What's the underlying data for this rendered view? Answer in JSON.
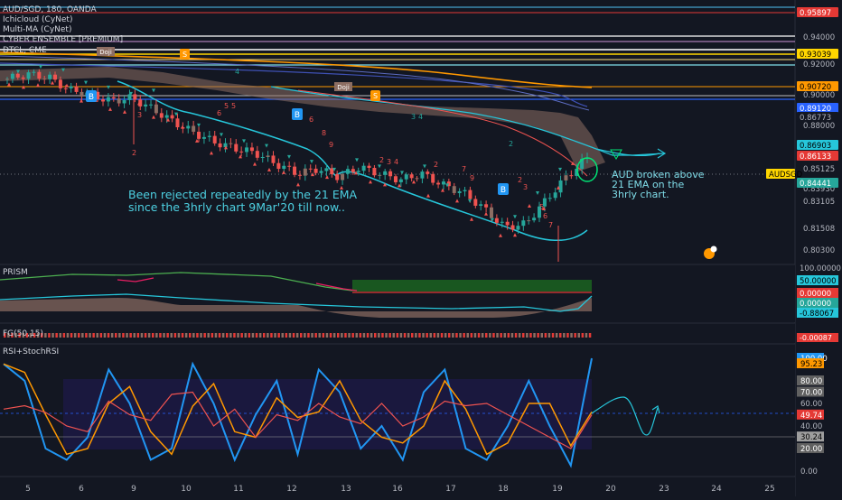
{
  "header": {
    "symbol_line": "AUD/SGD, 180, OANDA",
    "indicators": [
      "Ichicloud (CyNet)",
      "Multi-MA (CyNet)",
      "CYBER ENSEMBLE [PREMIUM]",
      "DTCL, CME"
    ]
  },
  "annotations": {
    "rejected_line1": "Been rejected repeatedly by the 21 EMA",
    "rejected_line2": "since the 3hrly chart 9Mar'20 till now..",
    "broken_line1": "AUD broken above",
    "broken_line2": "21 EMA on the",
    "broken_line3": "3hrly chart.",
    "doji1": "Doji",
    "doji2": "Doji",
    "b_markers": [
      "B",
      "B",
      "B",
      "B"
    ],
    "s_markers": [
      "S",
      "S"
    ],
    "counts": [
      "2",
      "3",
      "4",
      "5",
      "6",
      "7",
      "8",
      "9"
    ]
  },
  "price_axis": {
    "ticks": [
      "0.94000",
      "0.92000",
      "0.90000",
      "0.88000",
      "0.85125",
      "0.83930",
      "0.83105",
      "0.81508",
      "0.80300"
    ],
    "tags": [
      {
        "text": "0.95897",
        "color": "#e53935",
        "fg": "#ffffff"
      },
      {
        "text": "0.93039",
        "color": "#ffd600",
        "fg": "#000000"
      },
      {
        "text": "0.90720",
        "color": "#ff9800",
        "fg": "#000000"
      },
      {
        "text": "0.89120",
        "color": "#2962ff",
        "fg": "#ffffff"
      },
      {
        "text": "0.86773",
        "color": "#131722",
        "fg": "#b2b5be"
      },
      {
        "text": "0.86903",
        "color": "#26c6da",
        "fg": "#000000"
      },
      {
        "text": "0.86133",
        "color": "#e53935",
        "fg": "#ffffff"
      },
      {
        "text": "AUDSGD",
        "color": "#ffd600",
        "fg": "#000000"
      },
      {
        "text": "0.84441",
        "color": "#26a69a",
        "fg": "#ffffff"
      }
    ]
  },
  "prism": {
    "label": "PRISM",
    "ticks": [
      "100.00000",
      "50.00000",
      "0.00000",
      "0.00000",
      "-0.88067"
    ]
  },
  "fg": {
    "label": "FG(50,15)",
    "value": "-0.00087"
  },
  "rsi": {
    "label": "RSI+StochRSI",
    "ticks": [
      "100.00",
      "95.23",
      "80.00",
      "70.00",
      "60.00",
      "49.74",
      "40.00",
      "30.24",
      "20.00",
      "0.00"
    ]
  },
  "time_axis": {
    "labels": [
      "5",
      "6",
      "9",
      "10",
      "11",
      "12",
      "13",
      "16",
      "17",
      "18",
      "19",
      "20",
      "23",
      "24",
      "25"
    ]
  },
  "colors": {
    "bg": "#131722",
    "up": "#26a69a",
    "down": "#ef5350",
    "ema": "#26c6da",
    "cloud": "#a1887f"
  },
  "chart_data": {
    "type": "candlestick",
    "title": "AUD/SGD, 180, OANDA",
    "ylim": [
      0.795,
      0.962
    ],
    "x_labels": [
      "5",
      "6",
      "9",
      "10",
      "11",
      "12",
      "13",
      "16",
      "17",
      "18",
      "19",
      "20",
      "23",
      "24",
      "25"
    ],
    "close_path": [
      0.912,
      0.915,
      0.913,
      0.905,
      0.902,
      0.898,
      0.9,
      0.893,
      0.885,
      0.878,
      0.872,
      0.868,
      0.865,
      0.858,
      0.852,
      0.855,
      0.85,
      0.856,
      0.852,
      0.848,
      0.852,
      0.845,
      0.84,
      0.83,
      0.818,
      0.82,
      0.835,
      0.85,
      0.862
    ],
    "rsi": [
      55,
      58,
      52,
      40,
      35,
      62,
      50,
      45,
      68,
      70,
      40,
      55,
      30,
      50,
      45,
      60,
      48,
      42,
      60,
      40,
      48,
      62,
      58,
      60,
      50,
      40,
      30,
      20,
      50
    ],
    "stoch_rsi": [
      95,
      80,
      20,
      10,
      30,
      90,
      60,
      10,
      20,
      95,
      60,
      10,
      50,
      80,
      15,
      90,
      70,
      20,
      40,
      10,
      70,
      90,
      20,
      10,
      40,
      80,
      40,
      5,
      100
    ]
  }
}
